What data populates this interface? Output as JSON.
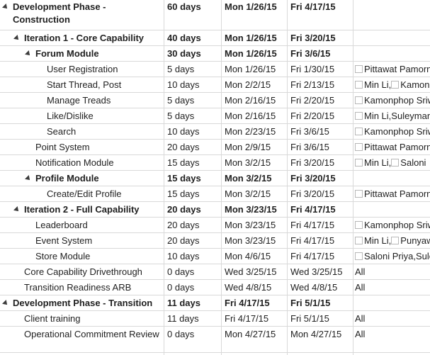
{
  "rows": [
    {
      "name": "Development Phase - Construction",
      "summary": true,
      "level": 0,
      "duration": "60 days",
      "start": "Mon 1/26/15",
      "finish": "Fri 4/17/15",
      "resources": []
    },
    {
      "name": "Iteration 1 - Core Capability",
      "summary": true,
      "level": 1,
      "duration": "40 days",
      "start": "Mon 1/26/15",
      "finish": "Fri 3/20/15",
      "resources": []
    },
    {
      "name": "Forum Module",
      "summary": true,
      "level": 2,
      "duration": "30 days",
      "start": "Mon 1/26/15",
      "finish": "Fri 3/6/15",
      "resources": []
    },
    {
      "name": "User Registration",
      "summary": false,
      "level": 3,
      "duration": "5 days",
      "start": "Mon 1/26/15",
      "finish": "Fri 1/30/15",
      "resources": [
        {
          "text": "Pittawat Pamornchaisirikij",
          "box": true
        }
      ]
    },
    {
      "name": "Start Thread, Post",
      "summary": false,
      "level": 3,
      "duration": "10 days",
      "start": "Mon 2/2/15",
      "finish": "Fri 2/13/15",
      "resources": [
        {
          "text": "Min Li,",
          "box": true
        },
        {
          "text": "Kamonphop",
          "box": true
        }
      ]
    },
    {
      "name": "Manage Treads",
      "summary": false,
      "level": 3,
      "duration": "5 days",
      "start": "Mon 2/16/15",
      "finish": "Fri 2/20/15",
      "resources": [
        {
          "text": "Kamonphop Sriwongsa",
          "box": true
        }
      ]
    },
    {
      "name": "Like/Dislike",
      "summary": false,
      "level": 3,
      "duration": "5 days",
      "start": "Mon 2/16/15",
      "finish": "Fri 2/20/15",
      "resources": [
        {
          "text": "Min Li,Suleyman",
          "box": true
        }
      ]
    },
    {
      "name": "Search",
      "summary": false,
      "level": 3,
      "duration": "10 days",
      "start": "Mon 2/23/15",
      "finish": "Fri 3/6/15",
      "resources": [
        {
          "text": "Kamonphop Sriwongsa",
          "box": true
        }
      ]
    },
    {
      "name": "Point System",
      "summary": false,
      "level": 2,
      "duration": "20 days",
      "start": "Mon 2/9/15",
      "finish": "Fri 3/6/15",
      "resources": [
        {
          "text": "Pittawat Pamornchaisirikij",
          "box": true
        }
      ]
    },
    {
      "name": "Notification Module",
      "summary": false,
      "level": 2,
      "duration": "15 days",
      "start": "Mon 3/2/15",
      "finish": "Fri 3/20/15",
      "resources": [
        {
          "text": "Min Li,",
          "box": true
        },
        {
          "text": "Saloni",
          "box": true
        }
      ]
    },
    {
      "name": "Profile Module",
      "summary": true,
      "level": 2,
      "duration": "15 days",
      "start": "Mon 3/2/15",
      "finish": "Fri 3/20/15",
      "resources": []
    },
    {
      "name": "Create/Edit Profile",
      "summary": false,
      "level": 3,
      "duration": "15 days",
      "start": "Mon 3/2/15",
      "finish": "Fri 3/20/15",
      "resources": [
        {
          "text": "Pittawat Pamornchaisirikij",
          "box": true
        }
      ]
    },
    {
      "name": "Iteration 2 - Full Capability",
      "summary": true,
      "level": 1,
      "duration": "20 days",
      "start": "Mon 3/23/15",
      "finish": "Fri 4/17/15",
      "resources": []
    },
    {
      "name": "Leaderboard",
      "summary": false,
      "level": 2,
      "duration": "20 days",
      "start": "Mon 3/23/15",
      "finish": "Fri 4/17/15",
      "resources": [
        {
          "text": "Kamonphop Sriwongsa",
          "box": true
        }
      ]
    },
    {
      "name": "Event System",
      "summary": false,
      "level": 2,
      "duration": "20 days",
      "start": "Mon 3/23/15",
      "finish": "Fri 4/17/15",
      "resources": [
        {
          "text": "Min Li,",
          "box": true
        },
        {
          "text": "Punyawee",
          "box": true
        }
      ]
    },
    {
      "name": "Store Module",
      "summary": false,
      "level": 2,
      "duration": "10 days",
      "start": "Mon 4/6/15",
      "finish": "Fri 4/17/15",
      "resources": [
        {
          "text": "Saloni Priya,Suleyman",
          "box": true
        }
      ]
    },
    {
      "name": "Core Capability Drivethrough",
      "summary": false,
      "level": 1,
      "duration": "0 days",
      "start": "Wed 3/25/15",
      "finish": "Wed 3/25/15",
      "resources": [
        {
          "text": "All",
          "box": false
        }
      ]
    },
    {
      "name": "Transition Readiness ARB",
      "summary": false,
      "level": 1,
      "duration": "0 days",
      "start": "Wed 4/8/15",
      "finish": "Wed 4/8/15",
      "resources": [
        {
          "text": "All",
          "box": false
        }
      ]
    },
    {
      "name": "Development Phase - Transition",
      "summary": true,
      "level": 0,
      "duration": "11 days",
      "start": "Fri 4/17/15",
      "finish": "Fri 5/1/15",
      "resources": []
    },
    {
      "name": "Client training",
      "summary": false,
      "level": 1,
      "duration": "11 days",
      "start": "Fri 4/17/15",
      "finish": "Fri 5/1/15",
      "resources": [
        {
          "text": "All",
          "box": false
        }
      ]
    },
    {
      "name": "Operational Commitment Review",
      "summary": false,
      "level": 1,
      "duration": "0 days",
      "start": "Mon 4/27/15",
      "finish": "Mon 4/27/15",
      "resources": [
        {
          "text": "All",
          "box": false
        }
      ]
    },
    {
      "name": "",
      "summary": false,
      "level": 0,
      "duration": "",
      "start": "",
      "finish": "",
      "resources": []
    }
  ],
  "icons": {
    "collapse": "collapse-triangle-icon",
    "resource": "resource-checkbox-icon"
  }
}
